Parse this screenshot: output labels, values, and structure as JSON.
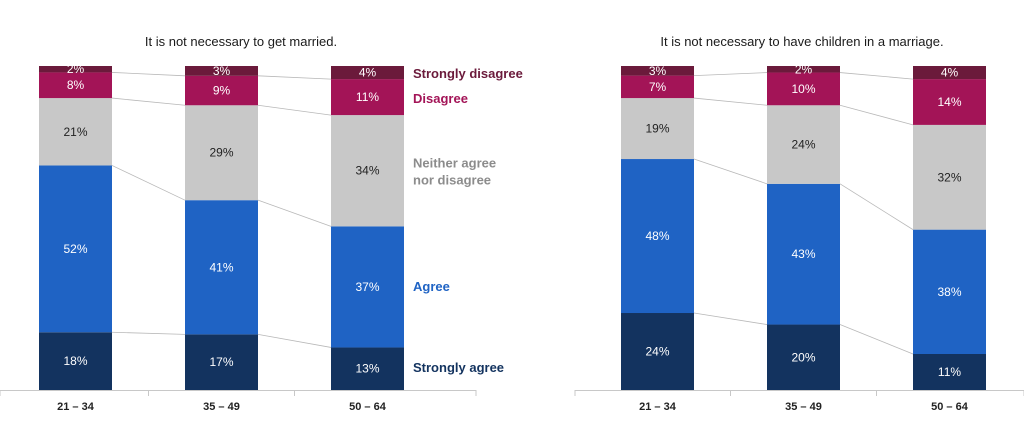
{
  "legend": [
    {
      "key": "strongly_disagree",
      "label": "Strongly disagree",
      "color": "#6b1a3b",
      "text_color": "#6b1a3b"
    },
    {
      "key": "disagree",
      "label": "Disagree",
      "color": "#a31457",
      "text_color": "#a31457"
    },
    {
      "key": "neither",
      "label": "Neither agree nor disagree",
      "label_lines": [
        "Neither agree",
        "nor disagree"
      ],
      "color": "#c8c8c8",
      "text_color": "#8c8c8c"
    },
    {
      "key": "agree",
      "label": "Agree",
      "color": "#1f63c4",
      "text_color": "#1f63c4"
    },
    {
      "key": "strongly_agree",
      "label": "Strongly agree",
      "color": "#13335f",
      "text_color": "#13335f"
    }
  ],
  "chart_data": [
    {
      "type": "bar",
      "stacked": true,
      "title": "It is not necessary to get married.",
      "categories": [
        "21 – 34",
        "35 – 49",
        "50 – 64"
      ],
      "series": [
        {
          "name": "Strongly agree",
          "values": [
            18,
            17,
            13
          ]
        },
        {
          "name": "Agree",
          "values": [
            52,
            41,
            37
          ]
        },
        {
          "name": "Neither agree nor disagree",
          "values": [
            21,
            29,
            34
          ]
        },
        {
          "name": "Disagree",
          "values": [
            8,
            9,
            11
          ]
        },
        {
          "name": "Strongly disagree",
          "values": [
            2,
            3,
            4
          ]
        }
      ],
      "unit": "%",
      "legend_position": "right"
    },
    {
      "type": "bar",
      "stacked": true,
      "title": "It is not necessary to have children in a marriage.",
      "categories": [
        "21 – 34",
        "35 – 49",
        "50 – 64"
      ],
      "series": [
        {
          "name": "Strongly agree",
          "values": [
            24,
            20,
            11
          ]
        },
        {
          "name": "Agree",
          "values": [
            48,
            43,
            38
          ]
        },
        {
          "name": "Neither agree nor disagree",
          "values": [
            19,
            24,
            32
          ]
        },
        {
          "name": "Disagree",
          "values": [
            7,
            10,
            14
          ]
        },
        {
          "name": "Strongly disagree",
          "values": [
            3,
            2,
            4
          ]
        }
      ],
      "unit": "%"
    }
  ]
}
